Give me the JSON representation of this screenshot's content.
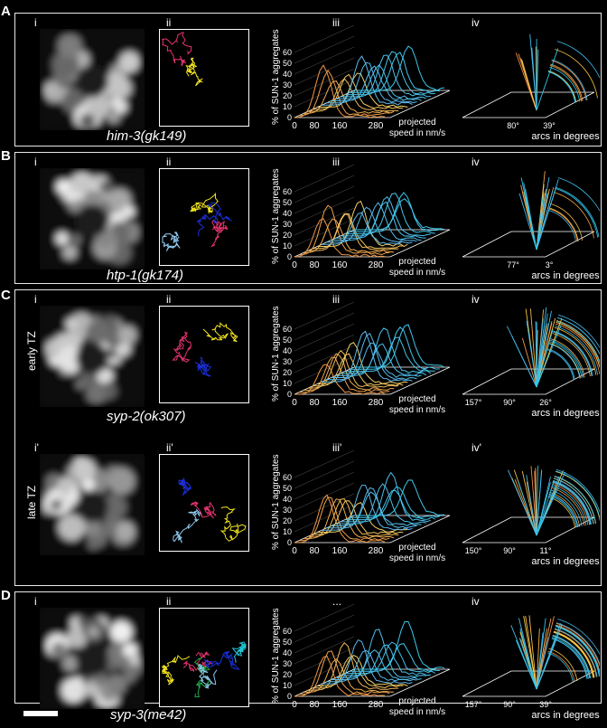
{
  "panels": [
    {
      "id": "A",
      "genotype": "him-3(gk149)",
      "sub": [
        "i",
        "ii",
        "iii",
        "iv"
      ],
      "side_label": "",
      "speed_ticks": [
        "0",
        "80",
        "160",
        "280"
      ],
      "arc_ticks": [
        "80°",
        "39°"
      ],
      "colors": [
        "#e6336e",
        "#f5e61e"
      ]
    },
    {
      "id": "B",
      "genotype": "htp-1(gk174)",
      "sub": [
        "i",
        "ii",
        "iii",
        "iv"
      ],
      "side_label": "",
      "speed_ticks": [
        "0",
        "80",
        "160",
        "280"
      ],
      "arc_ticks": [
        "77°",
        "3°"
      ],
      "colors": [
        "#8fc8ee",
        "#f5e61e",
        "#e6336e",
        "#1b2fd6"
      ]
    },
    {
      "id": "C",
      "genotype": "syp-2(ok307)",
      "sub": [
        "i",
        "ii",
        "iii",
        "iv"
      ],
      "side_label": "early TZ",
      "speed_ticks": [
        "0",
        "80",
        "160",
        "280"
      ],
      "arc_ticks": [
        "157°",
        "90°",
        "26°"
      ],
      "colors": [
        "#e6336e",
        "#1b2fd6",
        "#f5e61e"
      ]
    },
    {
      "id": "C2",
      "genotype": "",
      "sub": [
        "i'",
        "ii'",
        "iii'",
        "iv'"
      ],
      "side_label": "late TZ",
      "speed_ticks": [
        "0",
        "80",
        "160",
        "280"
      ],
      "arc_ticks": [
        "150°",
        "90°",
        "11°"
      ],
      "colors": [
        "#1b2fd6",
        "#8fc8ee",
        "#e6336e",
        "#f5e61e"
      ]
    },
    {
      "id": "D",
      "genotype": "syp-3(me42)",
      "sub": [
        "i",
        "ii",
        "...",
        "iv"
      ],
      "side_label": "",
      "speed_ticks": [
        "0",
        "80",
        "160",
        "280"
      ],
      "arc_ticks": [
        "157°",
        "90°",
        "39°"
      ],
      "colors": [
        "#e6336e",
        "#f5e61e",
        "#1fa84a",
        "#8fc8ee",
        "#1b2fd6",
        "#21c6d6"
      ]
    }
  ],
  "y_axis_label": "% of SUN-1 aggregates",
  "y_ticks": [
    "0",
    "10",
    "20",
    "30",
    "40",
    "50",
    "60"
  ],
  "x_axis_label_line1": "projected",
  "x_axis_label_line2": "speed in nm/s",
  "arc_axis_label": "arcs in degrees"
}
